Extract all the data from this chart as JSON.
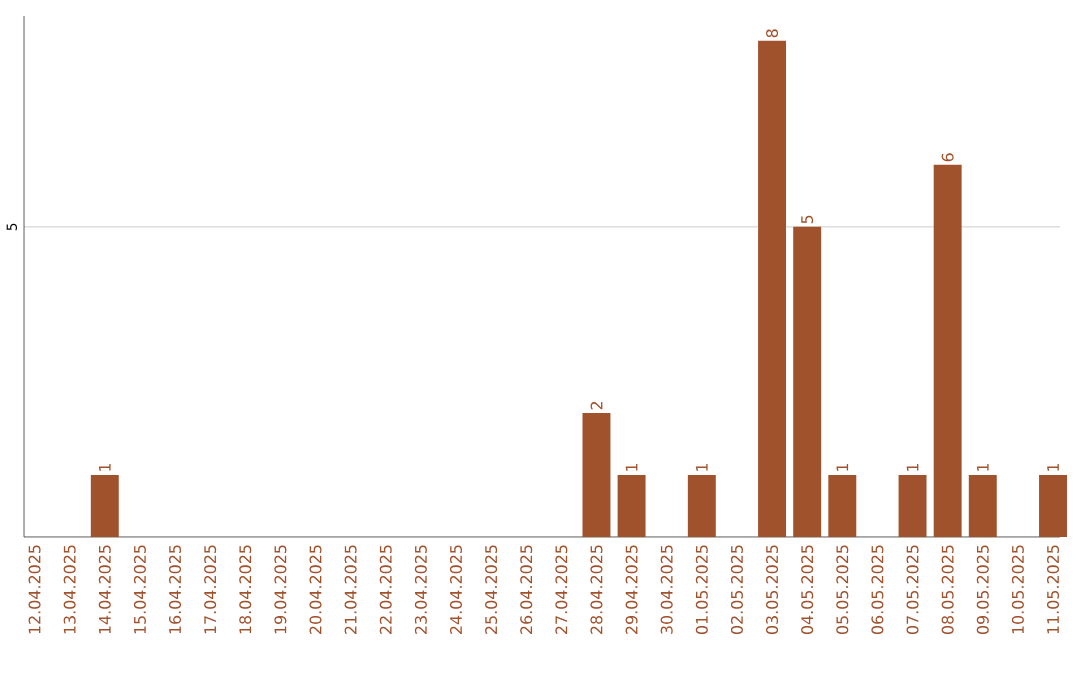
{
  "chart_data": {
    "type": "bar",
    "categories": [
      "12.04.2025",
      "13.04.2025",
      "14.04.2025",
      "15.04.2025",
      "16.04.2025",
      "17.04.2025",
      "18.04.2025",
      "19.04.2025",
      "20.04.2025",
      "21.04.2025",
      "22.04.2025",
      "23.04.2025",
      "24.04.2025",
      "25.04.2025",
      "26.04.2025",
      "27.04.2025",
      "28.04.2025",
      "29.04.2025",
      "30.04.2025",
      "01.05.2025",
      "02.05.2025",
      "03.05.2025",
      "04.05.2025",
      "05.05.2025",
      "06.05.2025",
      "07.05.2025",
      "08.05.2025",
      "09.05.2025",
      "10.05.2025",
      "11.05.2025"
    ],
    "values": [
      0,
      0,
      1,
      0,
      0,
      0,
      0,
      0,
      0,
      0,
      0,
      0,
      0,
      0,
      0,
      0,
      2,
      1,
      0,
      1,
      0,
      8,
      5,
      1,
      0,
      1,
      6,
      1,
      0,
      1
    ],
    "value_labels": [
      null,
      null,
      "1",
      null,
      null,
      null,
      null,
      null,
      null,
      null,
      null,
      null,
      null,
      null,
      null,
      null,
      "2",
      "1",
      null,
      "1",
      null,
      "8",
      "5",
      "1",
      null,
      "1",
      "6",
      "1",
      null,
      "1"
    ],
    "color": "#a0522d",
    "ylim": [
      0,
      8.4
    ],
    "yticks": [
      5
    ],
    "grid": "y"
  }
}
